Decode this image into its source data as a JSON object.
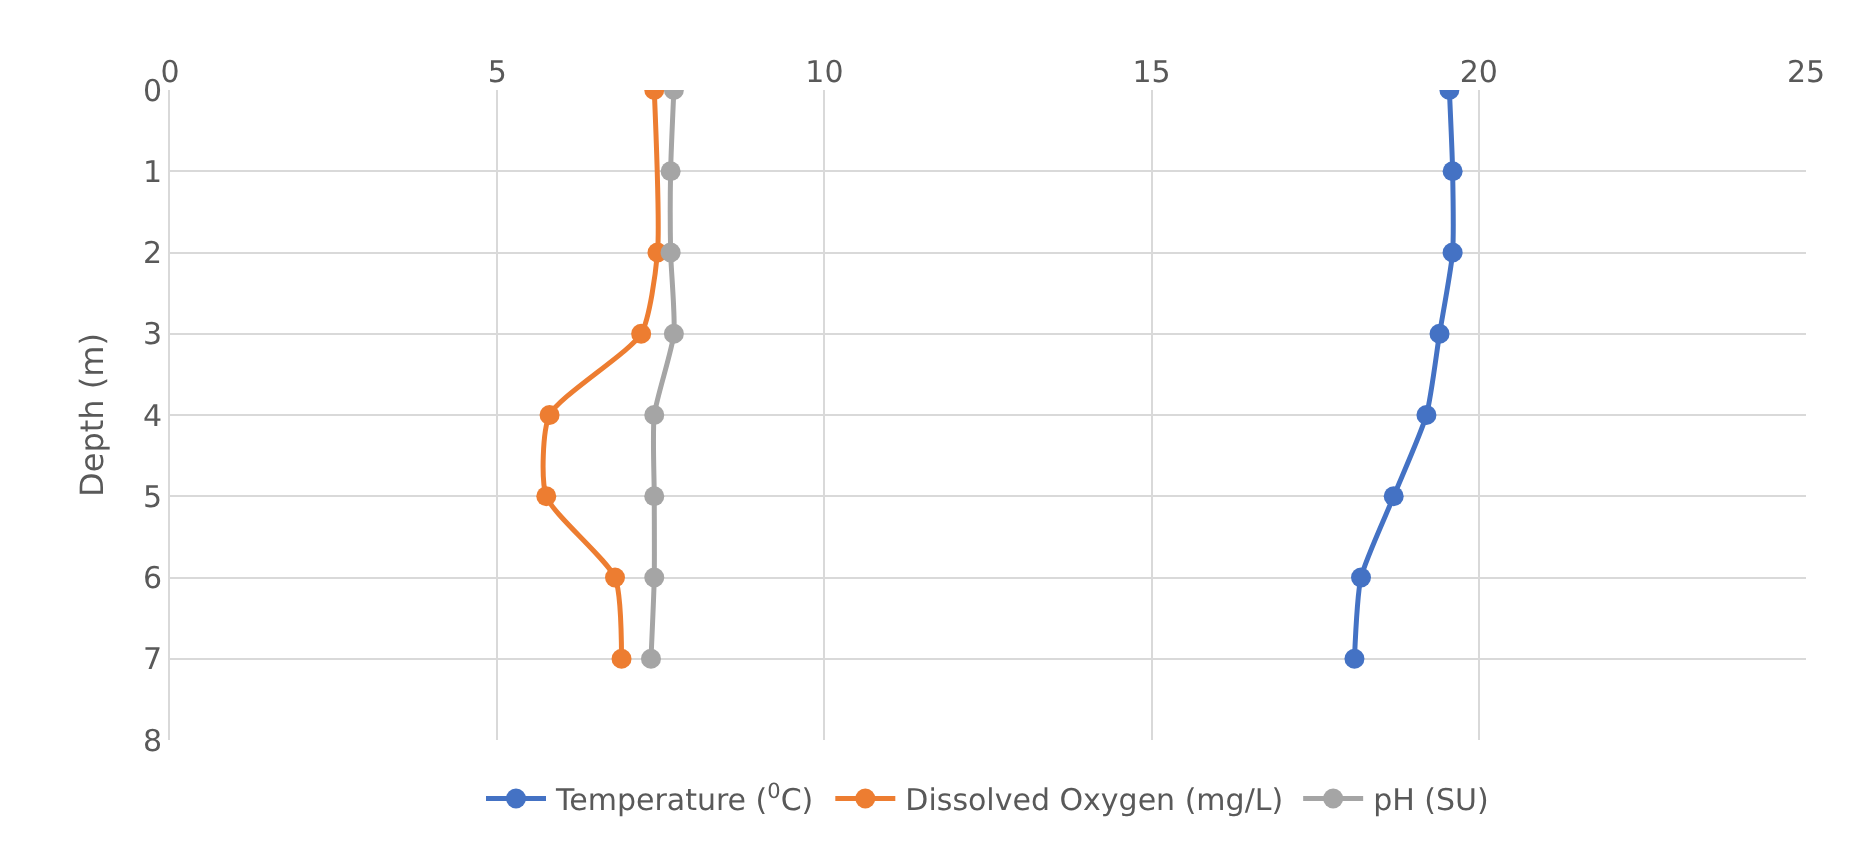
{
  "chart_data": {
    "type": "line",
    "ylabel": "Depth (m)",
    "series": [
      {
        "name": "Temperature ($^{0}$C)",
        "color": "#4472c4",
        "x": [
          19.55,
          19.6,
          19.6,
          19.4,
          19.2,
          18.7,
          18.2,
          18.1
        ],
        "values": [
          0,
          1,
          2,
          3,
          4,
          5,
          6,
          7
        ]
      },
      {
        "name": "Dissolved Oxygen (mg/L)",
        "color": "#ed7d31",
        "x": [
          7.4,
          null,
          7.45,
          7.2,
          5.8,
          5.75,
          6.8,
          6.9
        ],
        "values": [
          0,
          null,
          2,
          3,
          4,
          5,
          6,
          7
        ]
      },
      {
        "name": "pH (SU)",
        "color": "#a5a5a5",
        "x": [
          7.7,
          7.65,
          7.65,
          7.7,
          7.4,
          7.4,
          7.4,
          7.35
        ],
        "values": [
          0,
          1,
          2,
          3,
          4,
          5,
          6,
          7
        ]
      }
    ],
    "xlim": [
      0,
      25
    ],
    "xticks": [
      0,
      5,
      10,
      15,
      20,
      25
    ],
    "ylim": [
      8,
      0
    ],
    "yticks": [
      0,
      1,
      2,
      3,
      4,
      5,
      6,
      7,
      8
    ],
    "grid": true,
    "legend": "bottom",
    "marker": "circle",
    "line_style": "solid"
  }
}
